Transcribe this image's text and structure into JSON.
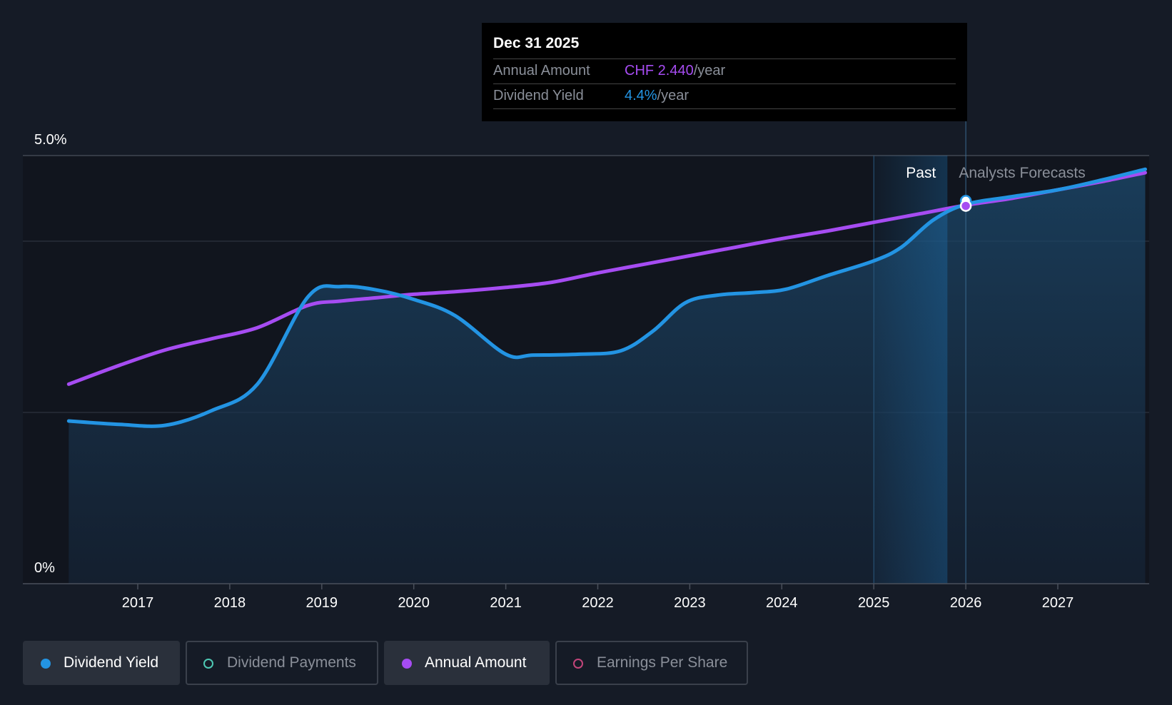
{
  "tooltip": {
    "date": "Dec 31 2025",
    "annual_label": "Annual Amount",
    "annual_value": "CHF 2.440",
    "annual_unit": "/year",
    "yield_label": "Dividend Yield",
    "yield_value": "4.4%",
    "yield_unit": "/year"
  },
  "legend": [
    {
      "label": "Dividend Yield",
      "active": true,
      "color": "#2394e3",
      "filled": true
    },
    {
      "label": "Dividend Payments",
      "active": false,
      "color": "#4ec9b4",
      "filled": false
    },
    {
      "label": "Annual Amount",
      "active": true,
      "color": "#a64cf2",
      "filled": true
    },
    {
      "label": "Earnings Per Share",
      "active": false,
      "color": "#c2457a",
      "filled": false
    }
  ],
  "colors": {
    "background": "#151b26",
    "yield": "#2394e3",
    "annual": "#a64cf2"
  },
  "chart_data": {
    "type": "line",
    "title": "",
    "xlabel": "",
    "ylabel": "",
    "x_ticks": [
      "2017",
      "2018",
      "2019",
      "2020",
      "2021",
      "2022",
      "2023",
      "2024",
      "2025",
      "2026",
      "2027"
    ],
    "y_ticks": [
      {
        "value": 5.0,
        "label": "5.0%"
      },
      {
        "value": 0,
        "label": "0%"
      }
    ],
    "ylim": [
      0,
      5.0
    ],
    "xlim": [
      2016.25,
      2027.95
    ],
    "gridlines": [
      0,
      2.0,
      4.0,
      5.0
    ],
    "past_label": "Past",
    "forecast_label": "Analysts Forecasts",
    "past_region": [
      2025.0,
      2025.8
    ],
    "hover_x": 2026.0,
    "series": [
      {
        "name": "Dividend Yield",
        "points": [
          [
            2016.25,
            1.9
          ],
          [
            2016.8,
            1.86
          ],
          [
            2017.3,
            1.85
          ],
          [
            2017.8,
            2.02
          ],
          [
            2018.3,
            2.33
          ],
          [
            2018.85,
            3.35
          ],
          [
            2019.2,
            3.47
          ],
          [
            2019.6,
            3.43
          ],
          [
            2020.0,
            3.32
          ],
          [
            2020.45,
            3.13
          ],
          [
            2021.0,
            2.68
          ],
          [
            2021.3,
            2.67
          ],
          [
            2021.8,
            2.68
          ],
          [
            2022.25,
            2.72
          ],
          [
            2022.6,
            2.95
          ],
          [
            2022.95,
            3.28
          ],
          [
            2023.3,
            3.37
          ],
          [
            2023.7,
            3.4
          ],
          [
            2024.05,
            3.44
          ],
          [
            2024.5,
            3.6
          ],
          [
            2025.0,
            3.77
          ],
          [
            2025.3,
            3.93
          ],
          [
            2025.65,
            4.25
          ],
          [
            2026.0,
            4.43
          ],
          [
            2026.5,
            4.52
          ],
          [
            2027.0,
            4.6
          ],
          [
            2027.5,
            4.72
          ],
          [
            2027.95,
            4.84
          ]
        ]
      },
      {
        "name": "Annual Amount",
        "points": [
          [
            2016.25,
            2.33
          ],
          [
            2016.8,
            2.55
          ],
          [
            2017.3,
            2.73
          ],
          [
            2017.8,
            2.86
          ],
          [
            2018.3,
            2.99
          ],
          [
            2018.85,
            3.25
          ],
          [
            2019.2,
            3.3
          ],
          [
            2019.6,
            3.34
          ],
          [
            2020.0,
            3.38
          ],
          [
            2020.45,
            3.41
          ],
          [
            2021.0,
            3.46
          ],
          [
            2021.5,
            3.52
          ],
          [
            2022.0,
            3.63
          ],
          [
            2022.5,
            3.73
          ],
          [
            2023.0,
            3.83
          ],
          [
            2023.5,
            3.93
          ],
          [
            2024.0,
            4.03
          ],
          [
            2024.5,
            4.12
          ],
          [
            2025.0,
            4.22
          ],
          [
            2025.5,
            4.32
          ],
          [
            2026.0,
            4.42
          ],
          [
            2026.5,
            4.5
          ],
          [
            2027.0,
            4.6
          ],
          [
            2027.5,
            4.7
          ],
          [
            2027.95,
            4.8
          ]
        ]
      }
    ]
  }
}
